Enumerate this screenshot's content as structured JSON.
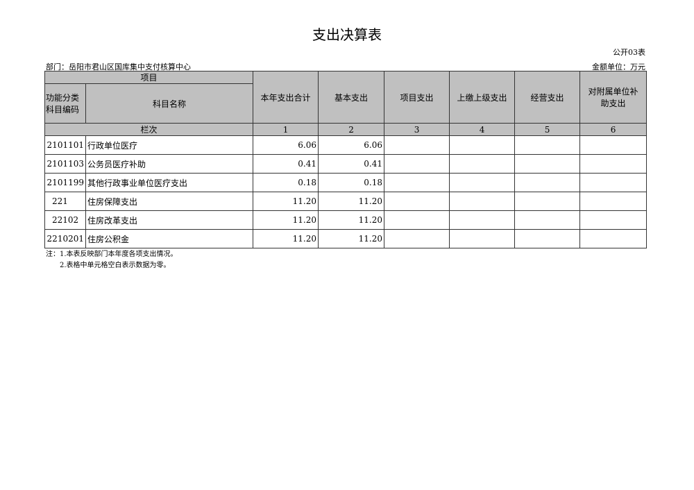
{
  "title": "支出决算表",
  "form_code": "公开03表",
  "department": "部门：岳阳市君山区国库集中支付核算中心",
  "unit": "金额单位：万元",
  "header": {
    "item": "项目",
    "code": "功能分类科目编码",
    "name": "科目名称",
    "cols": [
      "本年支出合计",
      "基本支出",
      "项目支出",
      "上缴上级支出",
      "经营支出",
      "对附属单位补助支出"
    ],
    "row_label": "栏次",
    "col_nums": [
      "1",
      "2",
      "3",
      "4",
      "5",
      "6"
    ]
  },
  "rows": [
    {
      "code": "2101101",
      "name": "行政单位医疗",
      "total": "6.06",
      "basic": "6.06"
    },
    {
      "code": "2101103",
      "name": "公务员医疗补助",
      "total": "0.41",
      "basic": "0.41"
    },
    {
      "code": "2101199",
      "name": "其他行政事业单位医疗支出",
      "total": "0.18",
      "basic": "0.18"
    },
    {
      "code": "221",
      "name": "住房保障支出",
      "total": "11.20",
      "basic": "11.20"
    },
    {
      "code": "22102",
      "name": "住房改革支出",
      "total": "11.20",
      "basic": "11.20"
    },
    {
      "code": "2210201",
      "name": "住房公积金",
      "total": "11.20",
      "basic": "11.20"
    }
  ],
  "notes": [
    "注：1.本表反映部门本年度各项支出情况。",
    "2.表格中单元格空白表示数据为零。"
  ]
}
